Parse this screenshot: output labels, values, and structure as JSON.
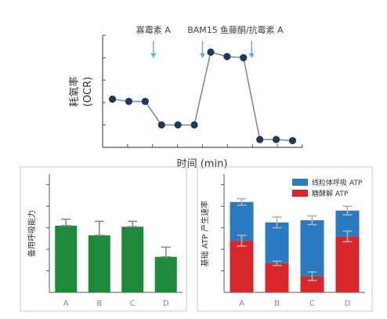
{
  "chart_data": [
    {
      "type": "line",
      "title": "",
      "xlabel": "时间 (min)",
      "ylabel_line1": "耗氧率",
      "ylabel_line2": "(OCR)",
      "x": [
        1,
        2,
        3,
        4,
        5,
        6,
        7,
        8,
        9,
        10,
        11,
        12
      ],
      "values": [
        4.3,
        4.1,
        4.1,
        2.0,
        2.0,
        2.0,
        8.5,
        8.1,
        8.0,
        0.7,
        0.7,
        0.6
      ],
      "ylim": [
        0,
        10
      ],
      "xlim": [
        0.4,
        12.6
      ],
      "annotations": [
        {
          "label": "寡霉素 A",
          "x": 3.5
        },
        {
          "label": "BAM15",
          "x": 6.5
        },
        {
          "label": "鱼藤酮/抗霉素 A",
          "x": 9.5
        }
      ],
      "colors": {
        "line": "#8a8a8a",
        "marker": "#1a3a5e",
        "arrow": "#5aaee0",
        "axis": "#555555"
      }
    },
    {
      "type": "bar",
      "title": "",
      "ylabel": "备用呼吸能力",
      "categories": [
        "A",
        "B",
        "C",
        "D"
      ],
      "values": [
        6.2,
        5.3,
        6.1,
        3.3
      ],
      "errors": [
        0.6,
        1.3,
        0.5,
        0.9
      ],
      "ylim": [
        0,
        11
      ],
      "colors": {
        "bar": "#1e8a3c",
        "error": "#888888"
      }
    },
    {
      "type": "bar",
      "stacked": true,
      "title": "",
      "ylabel": "基础 ATP 产生速率",
      "categories": [
        "A",
        "B",
        "C",
        "D"
      ],
      "series": [
        {
          "name": "糖酵解 ATP",
          "values": [
            4.8,
            2.7,
            1.5,
            5.2
          ],
          "errors": [
            0.5,
            0.2,
            0.4,
            0.5
          ],
          "color": "#d9262b"
        },
        {
          "name": "线粒体呼吸 ATP",
          "values": [
            3.6,
            3.8,
            5.2,
            2.4
          ],
          "errors": [
            0.3,
            0.5,
            0.4,
            0.4
          ],
          "color": "#2a7ac2"
        }
      ],
      "legend": "top-right",
      "ylim": [
        0,
        11
      ],
      "colors": {
        "error": "#b0b0b0"
      }
    }
  ]
}
